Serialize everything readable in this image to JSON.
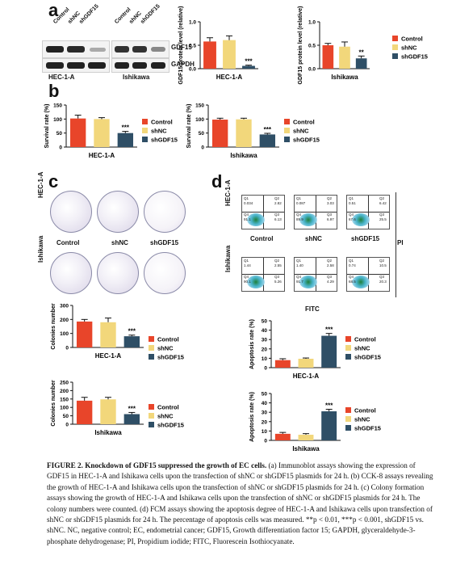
{
  "panels": {
    "a": "a",
    "b": "b",
    "c": "c",
    "d": "d"
  },
  "colors": {
    "control": "#e8452a",
    "shnc": "#f2d77b",
    "shgdf15": "#2f4f66"
  },
  "legend": {
    "control": "Control",
    "shnc": "shNC",
    "shgdf15": "shGDF15"
  },
  "blot": {
    "lanes": [
      "Control",
      "shNC",
      "shGDF15"
    ],
    "rows": [
      "GDF15",
      "GAPDH"
    ],
    "cells": [
      "HEC-1-A",
      "Ishikawa"
    ]
  },
  "colony_labels": {
    "row1": "HEC-1-A",
    "row2": "Ishikawa",
    "cols": [
      "Control",
      "shNC",
      "shGDF15"
    ]
  },
  "flow": {
    "row1": "HEC-1-A",
    "row2": "Ishikawa",
    "cols": [
      "Control",
      "shNC",
      "shGDF15"
    ],
    "xlabel": "FITC",
    "ylabel": "PI",
    "quadrants": [
      [
        [
          "0.034",
          "2.82",
          "91.1",
          "6.13"
        ],
        [
          "0.087",
          "3.03",
          "89.9",
          "6.97"
        ],
        [
          "0.51",
          "6.42",
          "67.6",
          "25.5"
        ]
      ],
      [
        [
          "1.44",
          "2.55",
          "90.1",
          "5.26"
        ],
        [
          "1.40",
          "2.58",
          "91.7",
          "4.29"
        ],
        [
          "0.74",
          "10.5",
          "68.5",
          "20.3"
        ]
      ]
    ]
  },
  "chart_data": [
    {
      "id": "a1",
      "type": "bar",
      "title": "",
      "xlabel": "HEC-1-A",
      "ylabel": "GDF15 protein level (relative)",
      "ylim": [
        0,
        1.0
      ],
      "ticks": [
        "0.0",
        "0.5",
        "1.0"
      ],
      "categories": [
        "Control",
        "shNC",
        "shGDF15"
      ],
      "values": [
        0.58,
        0.61,
        0.06
      ],
      "errors": [
        0.08,
        0.09,
        0.015
      ],
      "sig": [
        "",
        "",
        "***"
      ]
    },
    {
      "id": "a2",
      "type": "bar",
      "title": "",
      "xlabel": "Ishikawa",
      "ylabel": "GDF15 protein level (relative)",
      "ylim": [
        0,
        1.0
      ],
      "ticks": [
        "0.0",
        "0.5",
        "1.0"
      ],
      "categories": [
        "Control",
        "shNC",
        "shGDF15"
      ],
      "values": [
        0.5,
        0.47,
        0.22
      ],
      "errors": [
        0.04,
        0.1,
        0.05
      ],
      "sig": [
        "",
        "",
        "**"
      ]
    },
    {
      "id": "b1",
      "type": "bar",
      "title": "",
      "xlabel": "HEC-1-A",
      "ylabel": "Survival rate (%)",
      "ylim": [
        0,
        150
      ],
      "ticks": [
        "0",
        "50",
        "100",
        "150"
      ],
      "categories": [
        "Control",
        "shNC",
        "shGDF15"
      ],
      "values": [
        102,
        100,
        50
      ],
      "errors": [
        12,
        5,
        6
      ],
      "sig": [
        "",
        "",
        "***"
      ]
    },
    {
      "id": "b2",
      "type": "bar",
      "title": "",
      "xlabel": "Ishikawa",
      "ylabel": "Survival rate (%)",
      "ylim": [
        0,
        150
      ],
      "ticks": [
        "0",
        "50",
        "100",
        "150"
      ],
      "categories": [
        "Control",
        "shNC",
        "shGDF15"
      ],
      "values": [
        98,
        99,
        45
      ],
      "errors": [
        5,
        4,
        4
      ],
      "sig": [
        "",
        "",
        "***"
      ]
    },
    {
      "id": "c1",
      "type": "bar",
      "title": "",
      "xlabel": "HEC-1-A",
      "ylabel": "Colonies number",
      "ylim": [
        0,
        300
      ],
      "ticks": [
        "0",
        "100",
        "200",
        "300"
      ],
      "categories": [
        "Control",
        "shNC",
        "shGDF15"
      ],
      "values": [
        185,
        180,
        80
      ],
      "errors": [
        15,
        30,
        8
      ],
      "sig": [
        "",
        "",
        "***"
      ]
    },
    {
      "id": "c2",
      "type": "bar",
      "title": "",
      "xlabel": "Ishikawa",
      "ylabel": "Colonies number",
      "ylim": [
        0,
        250
      ],
      "ticks": [
        "0",
        "50",
        "100",
        "150",
        "200",
        "250"
      ],
      "categories": [
        "Control",
        "shNC",
        "shGDF15"
      ],
      "values": [
        140,
        148,
        60
      ],
      "errors": [
        20,
        12,
        10
      ],
      "sig": [
        "",
        "",
        "***"
      ]
    },
    {
      "id": "d1",
      "type": "bar",
      "title": "",
      "xlabel": "HEC-1-A",
      "ylabel": "Apoptosis rate (%)",
      "ylim": [
        0,
        50
      ],
      "ticks": [
        "0",
        "10",
        "20",
        "30",
        "40",
        "50"
      ],
      "categories": [
        "Control",
        "shNC",
        "shGDF15"
      ],
      "values": [
        8,
        9.5,
        34
      ],
      "errors": [
        1.5,
        0.8,
        2.5
      ],
      "sig": [
        "",
        "",
        "***"
      ]
    },
    {
      "id": "d2",
      "type": "bar",
      "title": "",
      "xlabel": "Ishikawa",
      "ylabel": "Apoptosis rate (%)",
      "ylim": [
        0,
        50
      ],
      "ticks": [
        "0",
        "10",
        "20",
        "30",
        "40",
        "50"
      ],
      "categories": [
        "Control",
        "shNC",
        "shGDF15"
      ],
      "values": [
        7,
        6,
        31
      ],
      "errors": [
        1.5,
        1.2,
        2.2
      ],
      "sig": [
        "",
        "",
        "***"
      ]
    }
  ],
  "caption": {
    "label": "FIGURE 2.",
    "title": "Knockdown of GDF15 suppressed the growth of EC cells.",
    "body": " (a) Immunoblot assays showing the expression of GDF15 in HEC-1-A and Ishikawa cells upon the transfection of shNC or shGDF15 plasmids for 24 h. (b) CCK-8 assays revealing the growth of HEC-1-A and Ishikawa cells upon the transfection of shNC or shGDF15 plasmids for 24 h. (c) Colony formation assays showing the growth of HEC-1-A and Ishikawa cells upon the transfection of shNC or shGDF15 plasmids for 24 h. The colony numbers were counted. (d) FCM assays showing the apoptosis degree of HEC-1-A and Ishikawa cells upon transfection of shNC or shGDF15 plasmids for 24 h. The percentage of apoptosis cells was measured. **p < 0.01, ***p < 0.001, shGDF15 vs. shNC. NC, negative control; EC, endometrial cancer; GDF15, Growth differentiation factor 15; GAPDH, glyceraldehyde-3-phosphate dehydrogenase; PI, Propidium iodide; FITC, Fluorescein Isothiocyanate."
  }
}
